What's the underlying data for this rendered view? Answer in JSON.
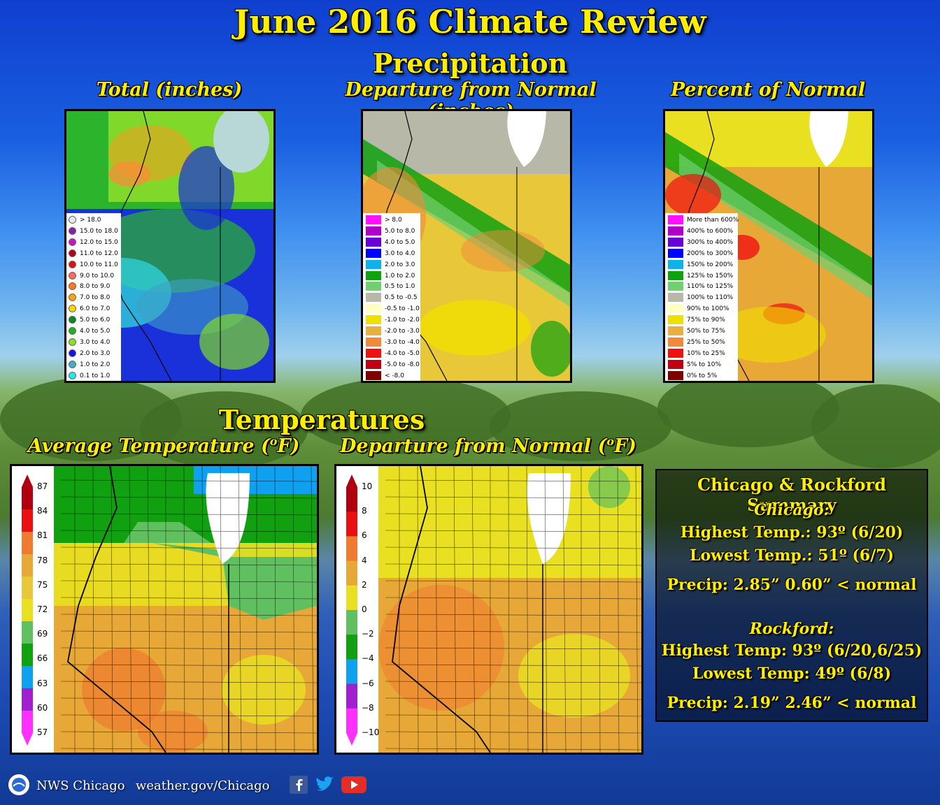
{
  "header": {
    "title": "June 2016 Climate Review",
    "precip_heading": "Precipitation",
    "temp_heading": "Temperatures"
  },
  "precip_panels": [
    {
      "subtitle": "Total (inches)",
      "legend_style": "dot",
      "legend": [
        {
          "label": "> 18.0",
          "color": "#e8e8e8"
        },
        {
          "label": "15.0 to 18.0",
          "color": "#8a1ea6"
        },
        {
          "label": "12.0 to 15.0",
          "color": "#c01ac0"
        },
        {
          "label": "11.0 to 12.0",
          "color": "#b0001e"
        },
        {
          "label": "10.0 to 11.0",
          "color": "#e01010"
        },
        {
          "label": "9.0 to 10.0",
          "color": "#ff6a5a"
        },
        {
          "label": "8.0 to 9.0",
          "color": "#ff7a1a"
        },
        {
          "label": "7.0 to 8.0",
          "color": "#ffa500"
        },
        {
          "label": "6.0 to 7.0",
          "color": "#ffd400"
        },
        {
          "label": "5.0 to 6.0",
          "color": "#008c1e"
        },
        {
          "label": "4.0 to 5.0",
          "color": "#20b020"
        },
        {
          "label": "3.0 to 4.0",
          "color": "#8ce01e"
        },
        {
          "label": "2.0 to 3.0",
          "color": "#1414e0"
        },
        {
          "label": "1.0 to 2.0",
          "color": "#40b0c8"
        },
        {
          "label": "0.1 to 1.0",
          "color": "#20e8e8"
        }
      ]
    },
    {
      "subtitle": "Departure from Normal (inches)",
      "legend_style": "box",
      "legend": [
        {
          "label": "> 8.0",
          "color": "#ff10ff"
        },
        {
          "label": "5.0 to 8.0",
          "color": "#b000c8"
        },
        {
          "label": "4.0 to 5.0",
          "color": "#6a00d8"
        },
        {
          "label": "3.0 to 4.0",
          "color": "#0000ff"
        },
        {
          "label": "2.0 to 3.0",
          "color": "#10b0e8"
        },
        {
          "label": "1.0 to 2.0",
          "color": "#10a010"
        },
        {
          "label": "0.5 to 1.0",
          "color": "#70d070"
        },
        {
          "label": "0.5 to -0.5",
          "color": "#b8b8a8"
        },
        {
          "label": "-0.5 to -1.0",
          "color": "#ffffc0"
        },
        {
          "label": "-1.0 to -2.0",
          "color": "#f0e000"
        },
        {
          "label": "-2.0 to -3.0",
          "color": "#e8b040"
        },
        {
          "label": "-3.0 to -4.0",
          "color": "#f08a3a"
        },
        {
          "label": "-4.0 to -5.0",
          "color": "#f01010"
        },
        {
          "label": "-5.0 to -8.0",
          "color": "#c00010"
        },
        {
          "label": "< -8.0",
          "color": "#800000"
        }
      ]
    },
    {
      "subtitle": "Percent of Normal",
      "legend_style": "box",
      "legend": [
        {
          "label": "More than 600%",
          "color": "#ff10ff"
        },
        {
          "label": "400% to 600%",
          "color": "#b000c8"
        },
        {
          "label": "300% to 400%",
          "color": "#6a00d8"
        },
        {
          "label": "200% to 300%",
          "color": "#0000ff"
        },
        {
          "label": "150% to 200%",
          "color": "#10b0e8"
        },
        {
          "label": "125% to 150%",
          "color": "#10a010"
        },
        {
          "label": "110% to 125%",
          "color": "#70d070"
        },
        {
          "label": "100% to 110%",
          "color": "#b8b8a8"
        },
        {
          "label": "90% to 100%",
          "color": "#ffffc0"
        },
        {
          "label": "75% to 90%",
          "color": "#f0e000"
        },
        {
          "label": "50% to 75%",
          "color": "#e8b040"
        },
        {
          "label": "25% to 50%",
          "color": "#f08a3a"
        },
        {
          "label": "10% to 25%",
          "color": "#f01010"
        },
        {
          "label": "5% to 10%",
          "color": "#c00010"
        },
        {
          "label": "0% to 5%",
          "color": "#800000"
        }
      ]
    }
  ],
  "temp_panels": [
    {
      "subtitle": "Average Temperature (",
      "subtitle_sup": "o",
      "subtitle_end": "F)",
      "scale_ticks": [
        "87",
        "84",
        "81",
        "78",
        "75",
        "72",
        "69",
        "66",
        "63",
        "60",
        "57"
      ],
      "scale_colors": [
        "#b00010",
        "#e81010",
        "#f07a30",
        "#e8a838",
        "#e8c838",
        "#e8e020",
        "#60c060",
        "#10a010",
        "#10a0f0",
        "#a020d0",
        "#ff30ff"
      ]
    },
    {
      "subtitle": "Departure from Normal (",
      "subtitle_sup": "o",
      "subtitle_end": "F)",
      "scale_ticks": [
        "10",
        "8",
        "6",
        "4",
        "2",
        "0",
        "−2",
        "−4",
        "−6",
        "−8",
        "−10"
      ],
      "scale_colors": [
        "#b00010",
        "#e81010",
        "#f07a30",
        "#e8a838",
        "#e8e020",
        "#60c060",
        "#10a010",
        "#10a0f0",
        "#a020d0",
        "#ff30ff"
      ]
    }
  ],
  "summary": {
    "heading": "Chicago & Rockford Summary",
    "chicago": {
      "name": "Chicago:",
      "high": "Highest Temp.: 93º (6/20)",
      "low": "Lowest Temp.: 51º (6/7)",
      "precip": "Precip: 2.85”  0.60” < normal"
    },
    "rockford": {
      "name": "Rockford:",
      "high": "Highest Temp: 93º (6/20,6/25)",
      "low": "Lowest Temp: 49º (6/8)",
      "precip": "Precip: 2.19”  2.46” < normal"
    }
  },
  "footer": {
    "org": "NWS Chicago",
    "url": "weather.gov/Chicago",
    "social": [
      "facebook-icon",
      "twitter-icon",
      "youtube-icon"
    ]
  },
  "colors": {
    "title": "#ffee00",
    "lake": "#ffffff"
  }
}
